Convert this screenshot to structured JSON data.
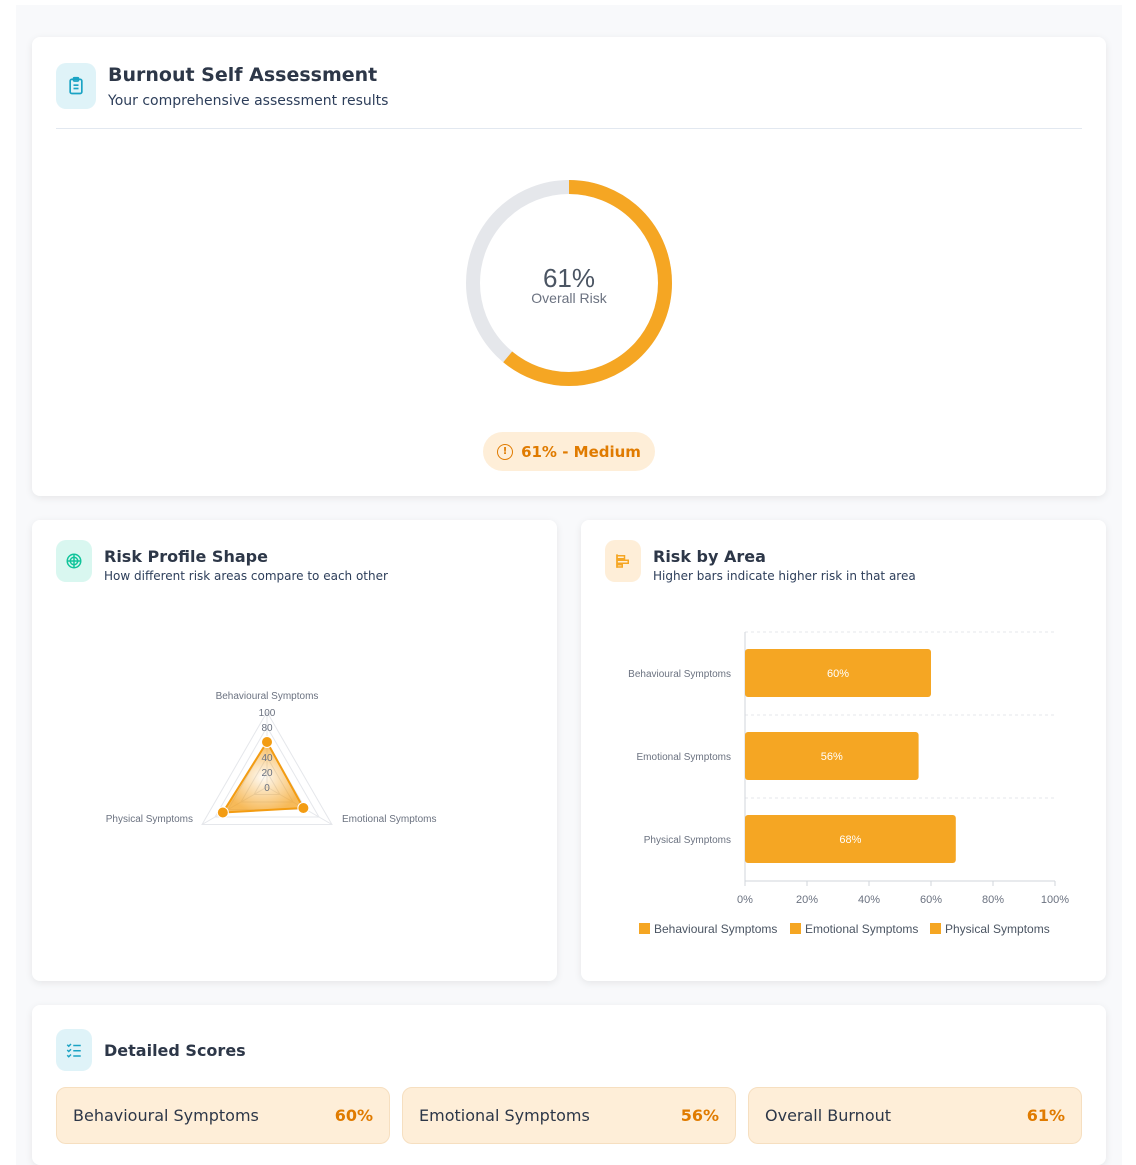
{
  "header": {
    "title": "Burnout Self Assessment",
    "subtitle": "Your comprehensive assessment results",
    "icon": "clipboard-icon"
  },
  "overall": {
    "value": 61,
    "percent_label": "61%",
    "caption": "Overall Risk",
    "badge": "61% - Medium",
    "badge_icon": "alert-circle-icon",
    "color": "#f5a623"
  },
  "radar": {
    "title": "Risk Profile Shape",
    "subtitle": "How different risk areas compare to each other",
    "icon": "target-icon"
  },
  "bars": {
    "title": "Risk by Area",
    "subtitle": "Higher bars indicate higher risk in that area",
    "icon": "bar-chart-icon"
  },
  "chart_data": [
    {
      "type": "radar",
      "categories": [
        "Behavioural Symptoms",
        "Emotional Symptoms",
        "Physical Symptoms"
      ],
      "values": [
        60,
        56,
        68
      ],
      "ticks": [
        "0",
        "20",
        "40",
        "60",
        "80",
        "100"
      ],
      "range": [
        0,
        100
      ],
      "color": "#f39c12"
    },
    {
      "type": "bar",
      "orientation": "horizontal",
      "categories": [
        "Behavioural Symptoms",
        "Emotional Symptoms",
        "Physical Symptoms"
      ],
      "values": [
        60,
        56,
        68
      ],
      "data_labels": [
        "60%",
        "56%",
        "68%"
      ],
      "xticks": [
        "0%",
        "20%",
        "40%",
        "60%",
        "80%",
        "100%"
      ],
      "xlim": [
        0,
        100
      ],
      "legend": [
        "Behavioural Symptoms",
        "Emotional Symptoms",
        "Physical Symptoms"
      ],
      "legend_position": "bottom",
      "color": "#f5a623"
    }
  ],
  "details": {
    "title": "Detailed Scores",
    "icon": "checklist-icon",
    "items": [
      {
        "label": "Behavioural Symptoms",
        "value": "60%"
      },
      {
        "label": "Emotional Symptoms",
        "value": "56%"
      },
      {
        "label": "Overall Burnout",
        "value": "61%"
      }
    ]
  }
}
